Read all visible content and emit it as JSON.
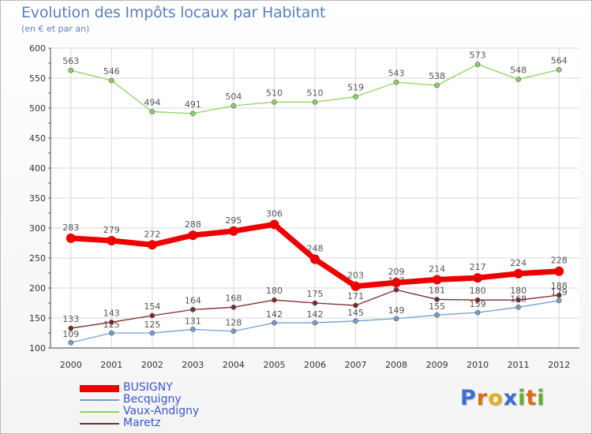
{
  "title": "Evolution des Impôts locaux par Habitant",
  "subtitle": "(en € et par an)",
  "logo": {
    "text": "Proxiti",
    "letters": [
      "P",
      "r",
      "o",
      "x",
      "i",
      "t",
      "i"
    ],
    "colors": [
      "#3a6fd0",
      "#e06a1a",
      "#e0b020",
      "#3a6fd0",
      "#60b030",
      "#e06a1a",
      "#60b030"
    ]
  },
  "chart_data": {
    "type": "line",
    "categories": [
      "2000",
      "2001",
      "2002",
      "2003",
      "2004",
      "2005",
      "2006",
      "2007",
      "2008",
      "2009",
      "2010",
      "2011",
      "2012"
    ],
    "ylim": [
      100,
      600
    ],
    "yticks": [
      100,
      150,
      200,
      250,
      300,
      350,
      400,
      450,
      500,
      550,
      600
    ],
    "grid": true,
    "legend_position": "bottom-left",
    "series": [
      {
        "name": "BUSIGNY",
        "color": "#ee0000",
        "values": [
          283,
          279,
          272,
          288,
          295,
          306,
          248,
          203,
          209,
          214,
          217,
          224,
          228
        ]
      },
      {
        "name": "Becquigny",
        "color": "#6f9fd0",
        "values": [
          109,
          125,
          125,
          131,
          128,
          142,
          142,
          145,
          149,
          155,
          159,
          168,
          179
        ]
      },
      {
        "name": "Vaux-Andigny",
        "color": "#90d060",
        "values": [
          563,
          546,
          494,
          491,
          504,
          510,
          510,
          519,
          543,
          538,
          573,
          548,
          564
        ]
      },
      {
        "name": "Maretz",
        "color": "#7a2a2a",
        "values": [
          133,
          143,
          154,
          164,
          168,
          180,
          175,
          171,
          197,
          181,
          180,
          180,
          188
        ]
      }
    ]
  }
}
